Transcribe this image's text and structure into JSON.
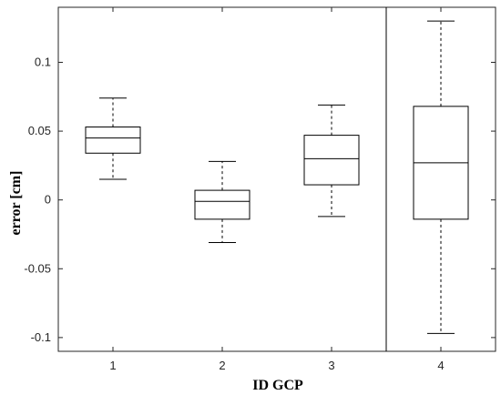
{
  "chart_data": {
    "type": "box",
    "xlabel": "ID GCP",
    "ylabel": "error [cm]",
    "ylim": [
      -0.11,
      0.14
    ],
    "yticks": [
      "0.1",
      "0.05",
      "0",
      "-0.05",
      "-0.1"
    ],
    "ytick_values": [
      0.1,
      0.05,
      0,
      -0.05,
      -0.1
    ],
    "categories": [
      "1",
      "2",
      "3",
      "4"
    ],
    "boxes": [
      {
        "category": "1",
        "whisker_low": 0.015,
        "q1": 0.034,
        "median": 0.045,
        "q3": 0.053,
        "whisker_high": 0.074
      },
      {
        "category": "2",
        "whisker_low": -0.031,
        "q1": -0.014,
        "median": -0.001,
        "q3": 0.007,
        "whisker_high": 0.028
      },
      {
        "category": "3",
        "whisker_low": -0.012,
        "q1": 0.011,
        "median": 0.03,
        "q3": 0.047,
        "whisker_high": 0.069
      },
      {
        "category": "4",
        "whisker_low": -0.097,
        "q1": -0.014,
        "median": 0.027,
        "q3": 0.068,
        "whisker_high": 0.13
      }
    ],
    "separator_after_category": "3",
    "grid": false,
    "legend": "none",
    "colors": {
      "line": "#000000",
      "axis": "#262626",
      "whisker": "#000000"
    }
  }
}
